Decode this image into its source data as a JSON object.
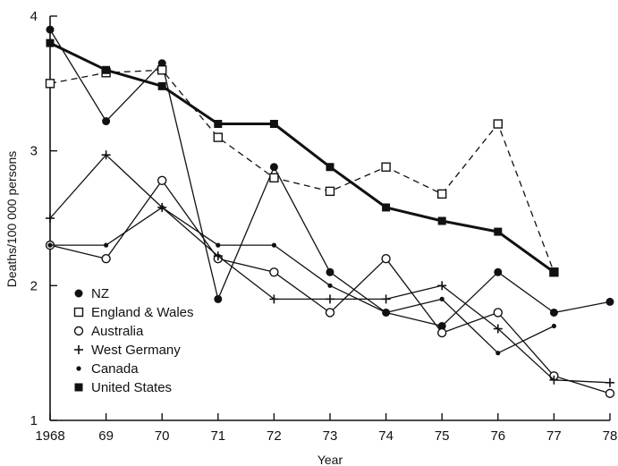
{
  "chart_data": {
    "type": "line",
    "xlabel": "Year",
    "ylabel": "Deaths/100 000 persons",
    "x": [
      1968,
      1969,
      1970,
      1971,
      1972,
      1973,
      1974,
      1975,
      1976,
      1977,
      1978
    ],
    "x_tick_labels": [
      "1968",
      "69",
      "70",
      "71",
      "72",
      "73",
      "74",
      "75",
      "76",
      "77",
      "78"
    ],
    "xlim": [
      1968,
      1978
    ],
    "ylim": [
      1,
      4
    ],
    "y_ticks": [
      1,
      2,
      3,
      4
    ],
    "y_tick_labels": [
      "1",
      "2",
      "3",
      "4"
    ],
    "grid": false,
    "legend_position": "lower-left",
    "series": [
      {
        "name": "NZ",
        "marker": "filled-circle",
        "line": "solid",
        "values": [
          3.9,
          3.22,
          3.65,
          1.9,
          2.88,
          2.1,
          1.8,
          1.7,
          2.1,
          1.8,
          1.88
        ]
      },
      {
        "name": "England & Wales",
        "marker": "open-square",
        "line": "dashed",
        "values": [
          3.5,
          3.58,
          3.6,
          3.1,
          2.8,
          2.7,
          2.88,
          2.68,
          3.2,
          2.1,
          null
        ]
      },
      {
        "name": "Australia",
        "marker": "open-circle",
        "line": "solid",
        "values": [
          2.3,
          2.2,
          2.78,
          2.2,
          2.1,
          1.8,
          2.2,
          1.65,
          1.8,
          1.33,
          1.2
        ]
      },
      {
        "name": "West Germany",
        "marker": "plus",
        "line": "solid",
        "values": [
          2.5,
          2.97,
          2.58,
          2.22,
          1.9,
          1.9,
          1.9,
          2.0,
          1.68,
          1.3,
          1.28
        ]
      },
      {
        "name": "Canada",
        "marker": "small-dot",
        "line": "solid",
        "values": [
          2.3,
          2.3,
          2.58,
          2.3,
          2.3,
          2.0,
          1.8,
          1.9,
          1.5,
          1.7,
          null
        ]
      },
      {
        "name": "United States",
        "marker": "filled-square",
        "line": "bold",
        "values": [
          3.8,
          3.6,
          3.48,
          3.2,
          3.2,
          2.88,
          2.58,
          2.48,
          2.4,
          2.1,
          null
        ]
      }
    ]
  }
}
